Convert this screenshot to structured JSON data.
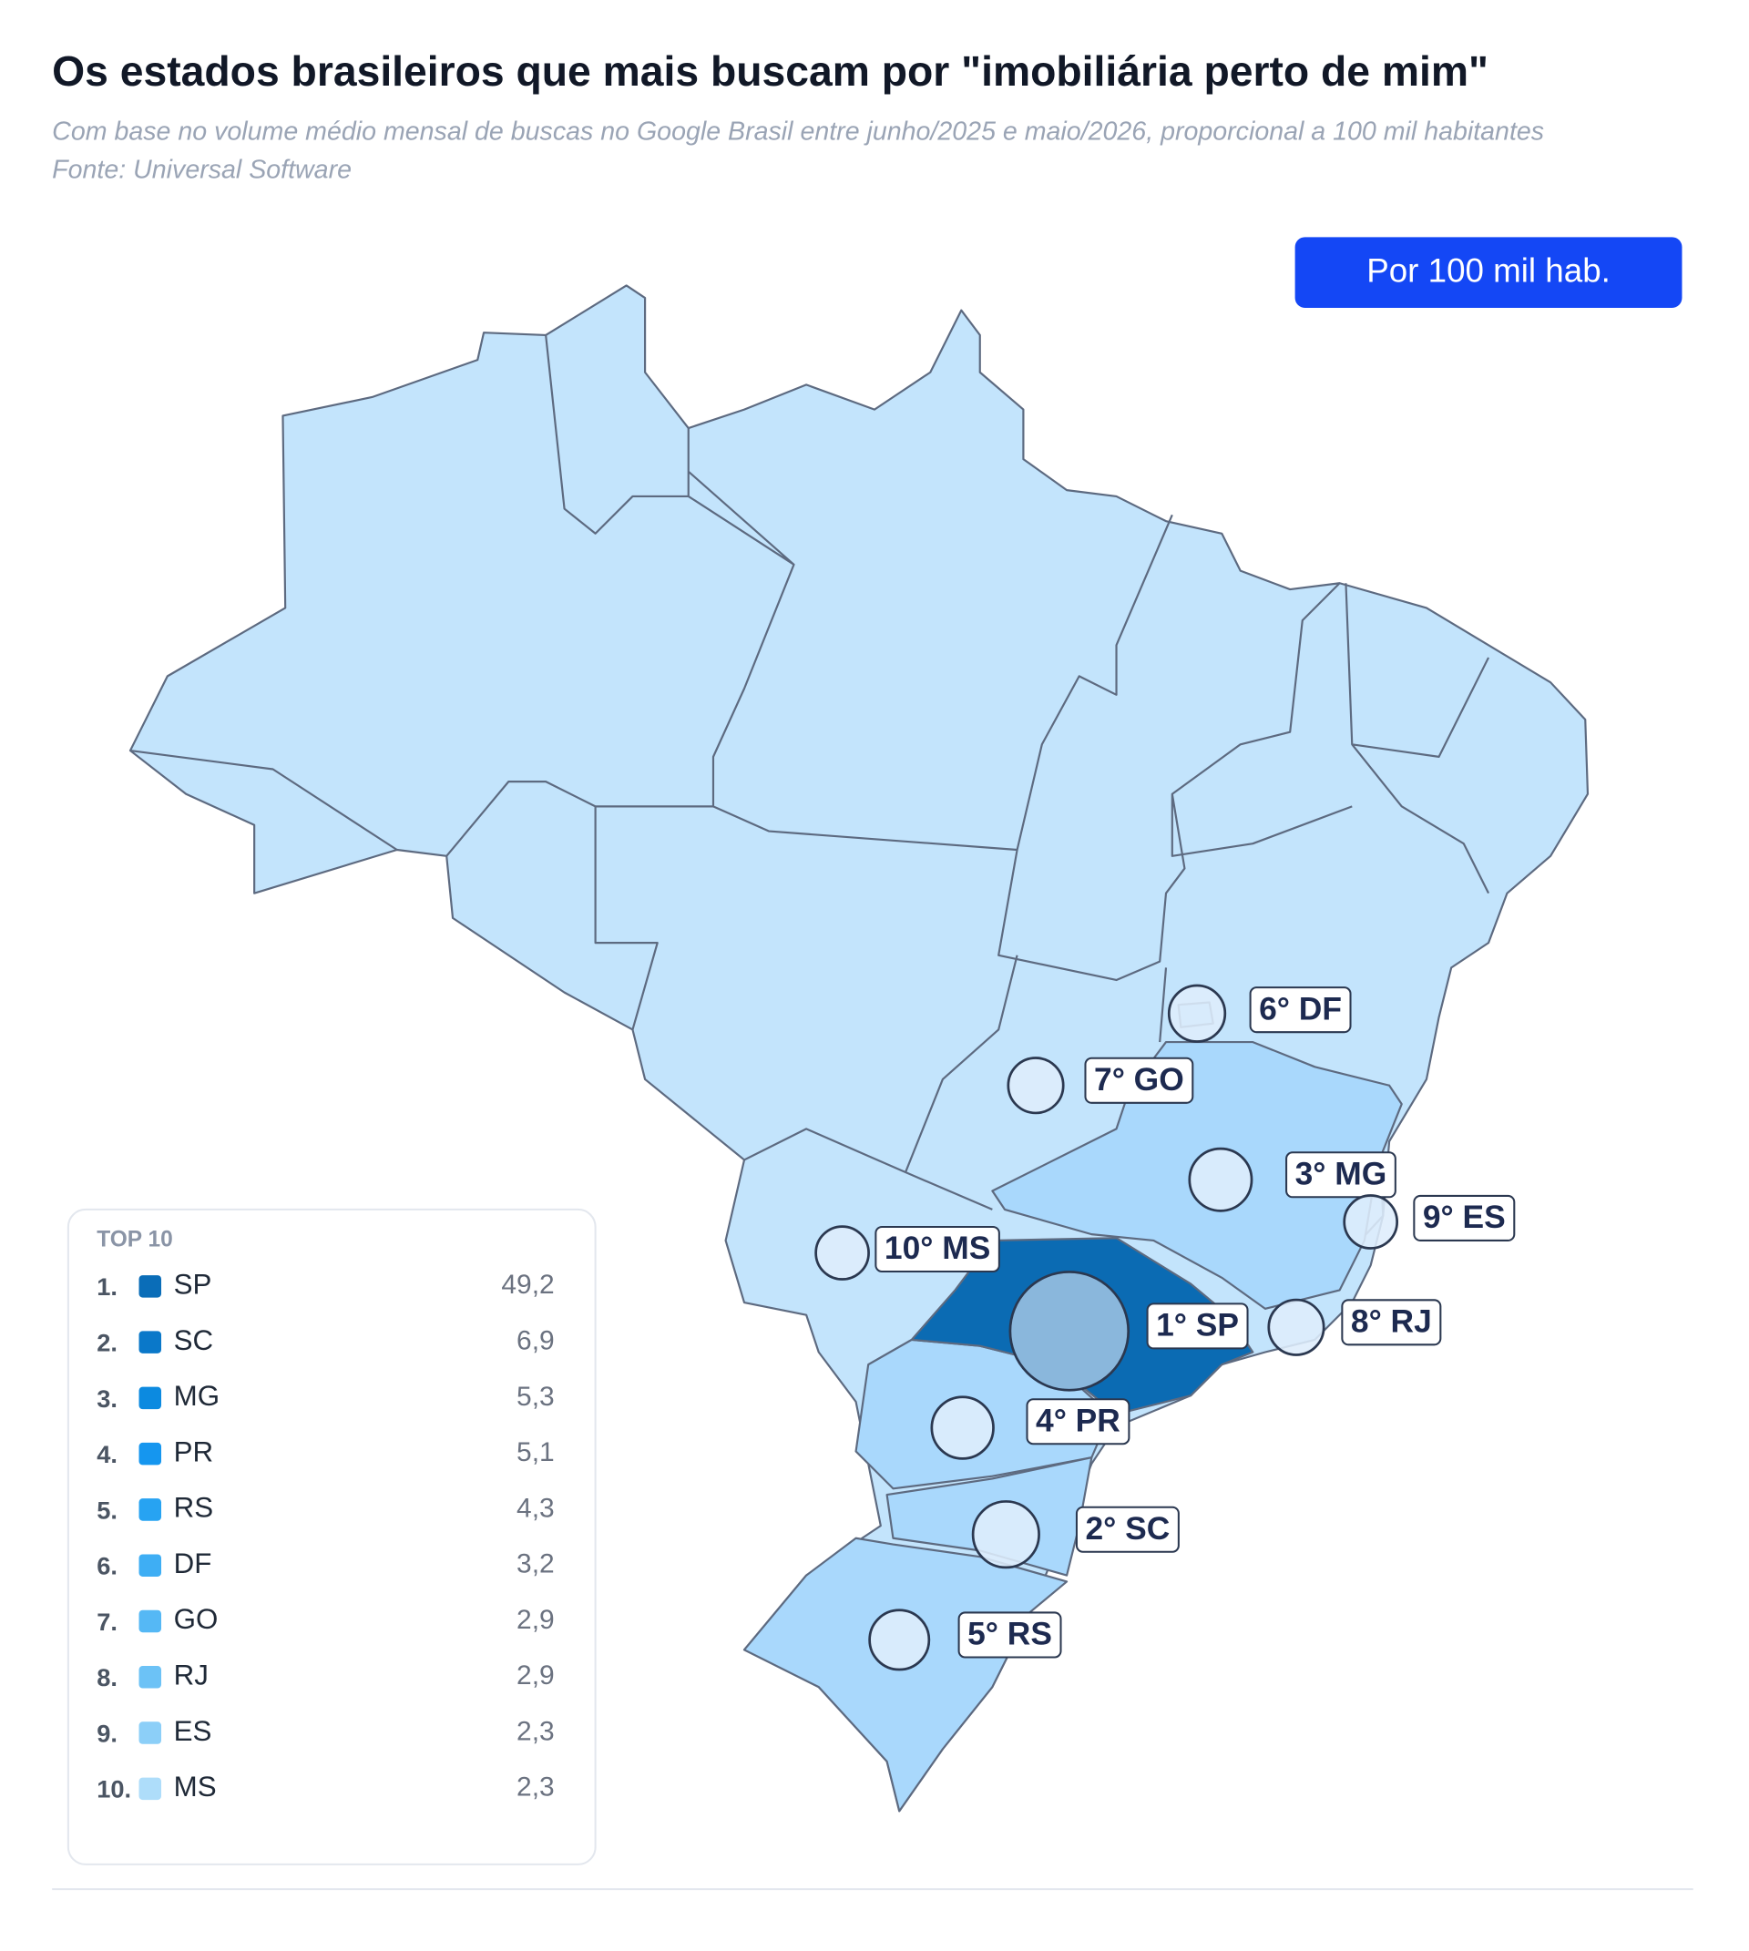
{
  "chart_data": {
    "type": "bubble-map",
    "title": "Os estados brasileiros que mais buscam por \"imobiliária perto de mim\"",
    "subtitle": [
      "Com base no volume médio mensal de buscas no Google Brasil entre junho/2025 e maio/2026, proporcional a 100 mil habitantes",
      "Fonte: Universal Software"
    ],
    "button": "Por 100 mil hab.",
    "legend_title": "TOP 10",
    "ranks": [
      "1.",
      "2.",
      "3.",
      "4.",
      "5.",
      "6.",
      "7.",
      "8.",
      "9.",
      "10."
    ],
    "categories": [
      "SP",
      "SC",
      "MG",
      "PR",
      "RS",
      "DF",
      "GO",
      "RJ",
      "ES",
      "MS"
    ],
    "values": [
      49.2,
      6.9,
      5.3,
      5.1,
      4.3,
      3.2,
      2.9,
      2.9,
      2.3,
      2.3
    ],
    "value_labels": [
      "49,2",
      "6,9",
      "5,3",
      "5,1",
      "4,3",
      "3,2",
      "2,9",
      "2,9",
      "2,3",
      "2,3"
    ],
    "bubble_labels": [
      "1° SP",
      "2° SC",
      "3° MG",
      "4° PR",
      "5° RS",
      "6° DF",
      "7° GO",
      "8° RJ",
      "9° ES",
      "10° MS"
    ],
    "colors": [
      "#0a6db8",
      "#0a78c9",
      "#0c8ae0",
      "#1596ef",
      "#27a3f2",
      "#3eaef4",
      "#55b8f5",
      "#6cc2f6",
      "#8ccff8",
      "#aeddfa"
    ]
  }
}
